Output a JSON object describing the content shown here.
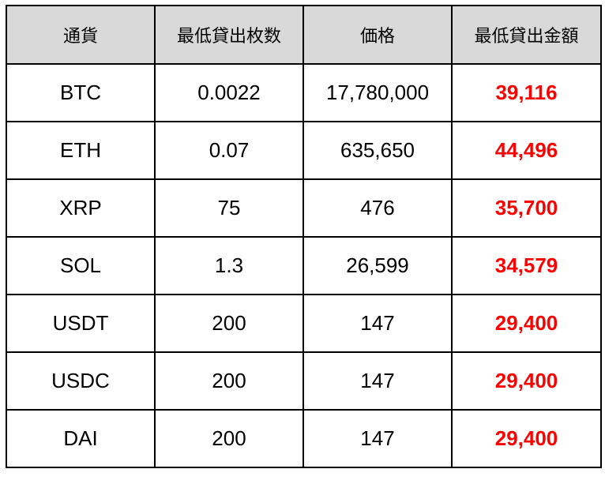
{
  "table": {
    "headers": [
      "通貨",
      "最低貸出枚数",
      "価格",
      "最低貸出金額"
    ],
    "rows": [
      {
        "currency": "BTC",
        "min_quantity": "0.0022",
        "price": "17,780,000",
        "min_amount": "39,116"
      },
      {
        "currency": "ETH",
        "min_quantity": "0.07",
        "price": "635,650",
        "min_amount": "44,496"
      },
      {
        "currency": "XRP",
        "min_quantity": "75",
        "price": "476",
        "min_amount": "35,700"
      },
      {
        "currency": "SOL",
        "min_quantity": "1.3",
        "price": "26,599",
        "min_amount": "34,579"
      },
      {
        "currency": "USDT",
        "min_quantity": "200",
        "price": "147",
        "min_amount": "29,400"
      },
      {
        "currency": "USDC",
        "min_quantity": "200",
        "price": "147",
        "min_amount": "29,400"
      },
      {
        "currency": "DAI",
        "min_quantity": "200",
        "price": "147",
        "min_amount": "29,400"
      }
    ]
  },
  "colors": {
    "header_background": "#d9d9d9",
    "amount_text": "#ff0000",
    "border": "#000000"
  }
}
